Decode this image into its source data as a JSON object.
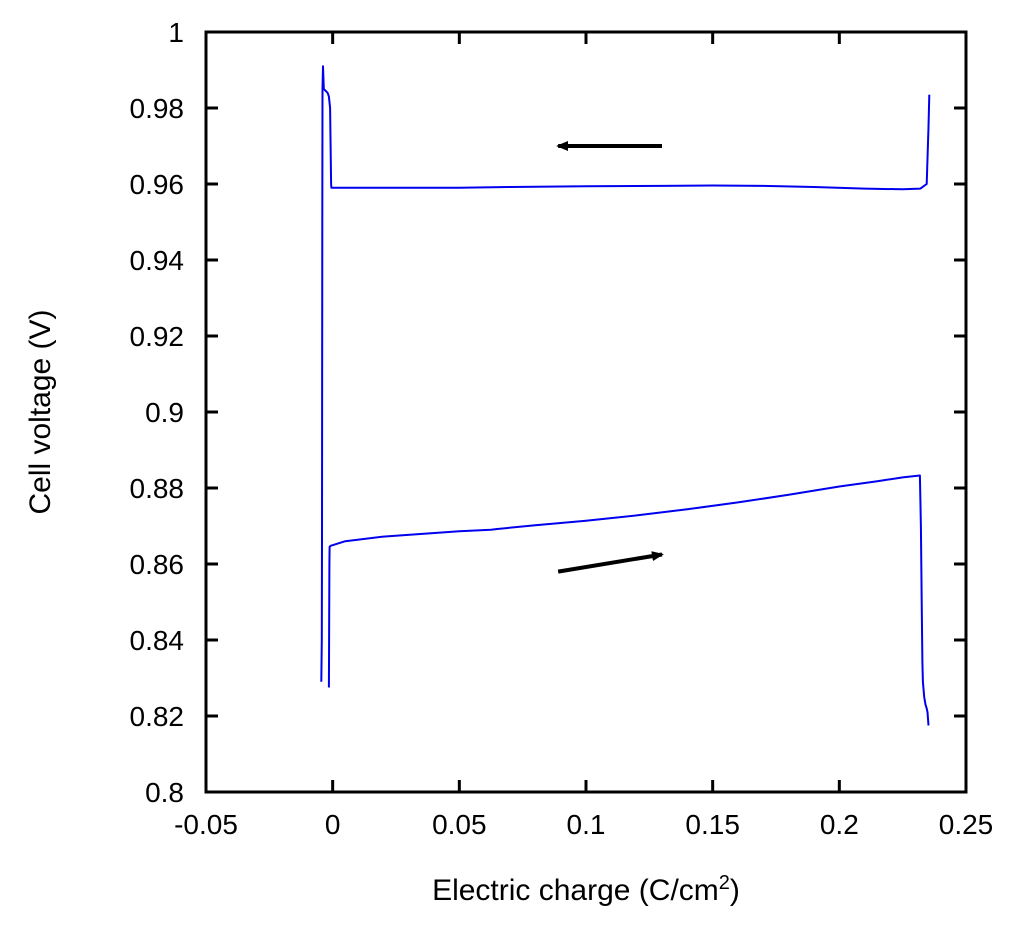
{
  "chart_data": {
    "type": "line",
    "title": "",
    "xlabel": "Electric charge (C/cm",
    "xlabel_superscript": "2",
    "xlabel_suffix": ")",
    "ylabel": "Cell voltage (V)",
    "xlim": [
      -0.05,
      0.25
    ],
    "ylim": [
      0.8,
      1.0
    ],
    "xticks": [
      -0.05,
      0,
      0.05,
      0.1,
      0.15,
      0.2,
      0.25
    ],
    "xtick_labels": [
      "-0.05",
      "0",
      "0.05",
      "0.1",
      "0.15",
      "0.2",
      "0.25"
    ],
    "yticks": [
      0.8,
      0.82,
      0.84,
      0.86,
      0.88,
      0.9,
      0.92,
      0.94,
      0.96,
      0.98,
      1.0
    ],
    "ytick_labels": [
      "0.8",
      "0.82",
      "0.84",
      "0.86",
      "0.88",
      "0.9",
      "0.92",
      "0.94",
      "0.96",
      "0.98",
      "1"
    ],
    "grid": false,
    "legend": "none",
    "series": [
      {
        "color": "#0000ee",
        "x": [
          -0.0045,
          -0.0043,
          -0.0042,
          -0.0041,
          -0.004,
          -0.0038,
          -0.0035,
          -0.002,
          -0.0015,
          -0.001,
          -0.0008,
          -0.0006,
          -0.0005,
          0.01,
          0.03,
          0.05,
          0.07,
          0.1,
          0.13,
          0.15,
          0.17,
          0.19,
          0.21,
          0.225,
          0.232,
          0.2345,
          0.2352,
          0.2355
        ],
        "y": [
          0.829,
          0.84,
          0.866,
          0.95,
          0.985,
          0.991,
          0.985,
          0.984,
          0.983,
          0.98,
          0.97,
          0.96,
          0.959,
          0.959,
          0.959,
          0.959,
          0.9592,
          0.9594,
          0.9595,
          0.9596,
          0.9595,
          0.9592,
          0.9588,
          0.9586,
          0.9588,
          0.96,
          0.975,
          0.9835
        ]
      },
      {
        "color": "#0000ee",
        "x": [
          -0.0015,
          -0.0014,
          -0.0013,
          -0.0012,
          -0.0008,
          0.005,
          0.02,
          0.05,
          0.0625,
          0.065,
          0.08,
          0.1,
          0.12,
          0.14,
          0.16,
          0.18,
          0.2,
          0.215,
          0.225,
          0.2318,
          0.2322,
          0.2325,
          0.2328,
          0.233,
          0.2335,
          0.234,
          0.2345,
          0.2348,
          0.2352
        ],
        "y": [
          0.8275,
          0.84,
          0.86,
          0.8645,
          0.8648,
          0.866,
          0.8672,
          0.8686,
          0.869,
          0.8692,
          0.8702,
          0.8714,
          0.8728,
          0.8744,
          0.8762,
          0.8782,
          0.8804,
          0.8818,
          0.8828,
          0.8833,
          0.87,
          0.85,
          0.834,
          0.829,
          0.825,
          0.823,
          0.822,
          0.821,
          0.8175
        ]
      }
    ],
    "annotations": [
      {
        "type": "arrow",
        "x_from": 0.13,
        "y_from": 0.97,
        "x_to": 0.089,
        "y_to": 0.97
      },
      {
        "type": "arrow",
        "x_from": 0.089,
        "y_from": 0.858,
        "x_to": 0.13,
        "y_to": 0.8625
      }
    ],
    "line_color": "#0000ee",
    "arrow_color": "#000000"
  }
}
